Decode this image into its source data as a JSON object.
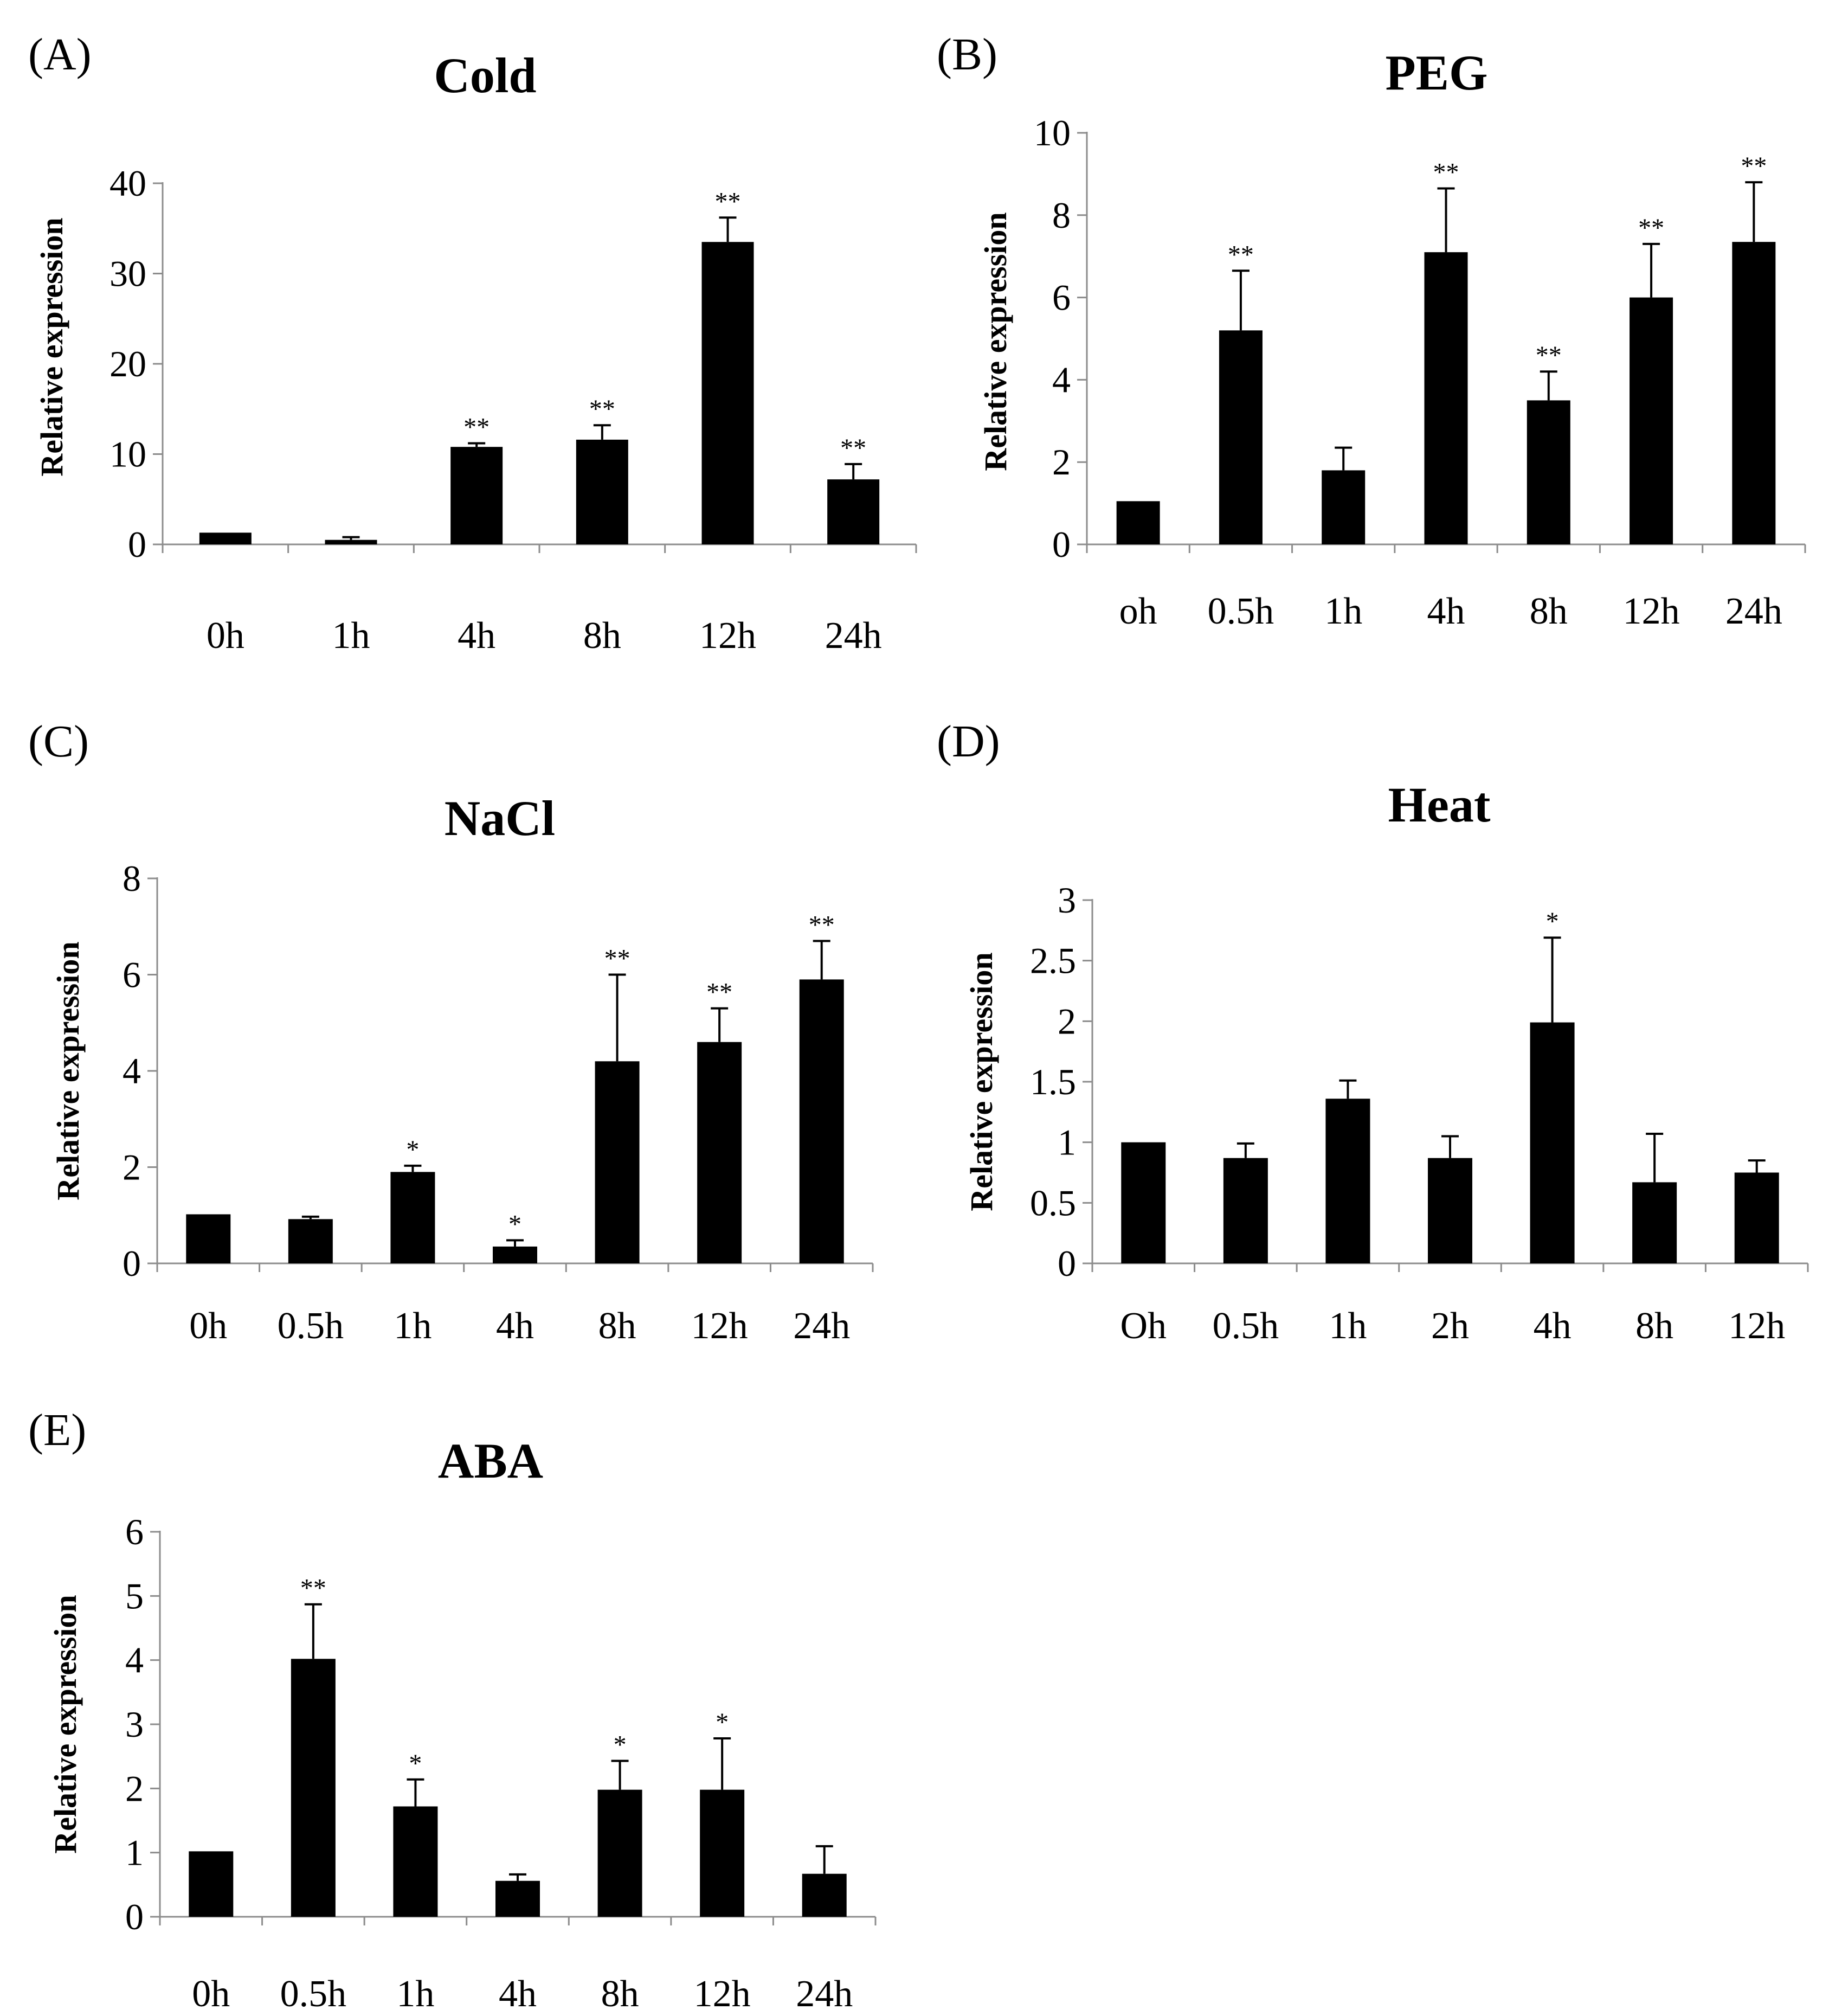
{
  "figure": {
    "colors": {
      "bar": "#000000",
      "axis": "#8c8c8c",
      "text": "#000000",
      "background": "#ffffff"
    }
  },
  "chart_data": [
    {
      "id": "cold",
      "panel_label": "(A)",
      "type": "bar",
      "title": "Cold",
      "xlabel": "",
      "ylabel": "Relative expression",
      "ylim": [
        0,
        40
      ],
      "yticks": [
        "0",
        "10",
        "20",
        "30",
        "40"
      ],
      "ytick_values": [
        0,
        10,
        20,
        30,
        40
      ],
      "categories": [
        "0h",
        "1h",
        "4h",
        "8h",
        "12h",
        "24h"
      ],
      "values": [
        1.3,
        0.5,
        10.8,
        11.6,
        33.5,
        7.2
      ],
      "errors": [
        0.0,
        0.3,
        0.4,
        1.6,
        2.7,
        1.7
      ],
      "significance": [
        "",
        "",
        "**",
        "**",
        "**",
        "**"
      ]
    },
    {
      "id": "peg",
      "panel_label": "(B)",
      "type": "bar",
      "title": "PEG",
      "xlabel": "",
      "ylabel": "Relative expression",
      "ylim": [
        0,
        10
      ],
      "yticks": [
        "0",
        "2",
        "4",
        "6",
        "8",
        "10"
      ],
      "ytick_values": [
        0,
        2,
        4,
        6,
        8,
        10
      ],
      "categories": [
        "oh",
        "0.5h",
        "1h",
        "4h",
        "8h",
        "12h",
        "24h"
      ],
      "values": [
        1.05,
        5.2,
        1.8,
        7.1,
        3.5,
        6.0,
        7.35
      ],
      "errors": [
        0.0,
        1.45,
        0.55,
        1.55,
        0.7,
        1.3,
        1.45
      ],
      "significance": [
        "",
        "**",
        "",
        "**",
        "**",
        "**",
        "**"
      ]
    },
    {
      "id": "nacl",
      "panel_label": "(C)",
      "type": "bar",
      "title": "NaCl",
      "xlabel": "",
      "ylabel": "Relative expression",
      "ylim": [
        0,
        8
      ],
      "yticks": [
        "0",
        "2",
        "4",
        "6",
        "8"
      ],
      "ytick_values": [
        0,
        2,
        4,
        6,
        8
      ],
      "categories": [
        "0h",
        "0.5h",
        "1h",
        "4h",
        "8h",
        "12h",
        "24h"
      ],
      "values": [
        1.02,
        0.92,
        1.9,
        0.35,
        4.2,
        4.6,
        5.9
      ],
      "errors": [
        0.0,
        0.05,
        0.13,
        0.13,
        1.8,
        0.7,
        0.8
      ],
      "significance": [
        "",
        "",
        "*",
        "*",
        "**",
        "**",
        "**"
      ]
    },
    {
      "id": "heat",
      "panel_label": "(D)",
      "type": "bar",
      "title": "Heat",
      "xlabel": "",
      "ylabel": "Relative expression",
      "ylim": [
        0,
        3
      ],
      "yticks": [
        "0",
        "0.5",
        "1",
        "1.5",
        "2",
        "2.5",
        "3"
      ],
      "ytick_values": [
        0,
        0.5,
        1,
        1.5,
        2,
        2.5,
        3
      ],
      "categories": [
        "Oh",
        "0.5h",
        "1h",
        "2h",
        "4h",
        "8h",
        "12h"
      ],
      "values": [
        1.0,
        0.87,
        1.36,
        0.87,
        1.99,
        0.67,
        0.75
      ],
      "errors": [
        0.0,
        0.12,
        0.15,
        0.18,
        0.7,
        0.4,
        0.1
      ],
      "significance": [
        "",
        "",
        "",
        "",
        "*",
        "",
        ""
      ]
    },
    {
      "id": "aba",
      "panel_label": "(E)",
      "type": "bar",
      "title": "ABA",
      "xlabel": "",
      "ylabel": "Relative expression",
      "ylim": [
        0,
        6
      ],
      "yticks": [
        "0",
        "1",
        "2",
        "3",
        "4",
        "5",
        "6"
      ],
      "ytick_values": [
        0,
        1,
        2,
        3,
        4,
        5,
        6
      ],
      "categories": [
        "0h",
        "0.5h",
        "1h",
        "4h",
        "8h",
        "12h",
        "24h"
      ],
      "values": [
        1.02,
        4.02,
        1.72,
        0.56,
        1.98,
        1.98,
        0.67
      ],
      "errors": [
        0.0,
        0.85,
        0.42,
        0.1,
        0.45,
        0.8,
        0.43
      ],
      "significance": [
        "",
        "**",
        "*",
        "",
        "*",
        "*",
        ""
      ]
    }
  ]
}
